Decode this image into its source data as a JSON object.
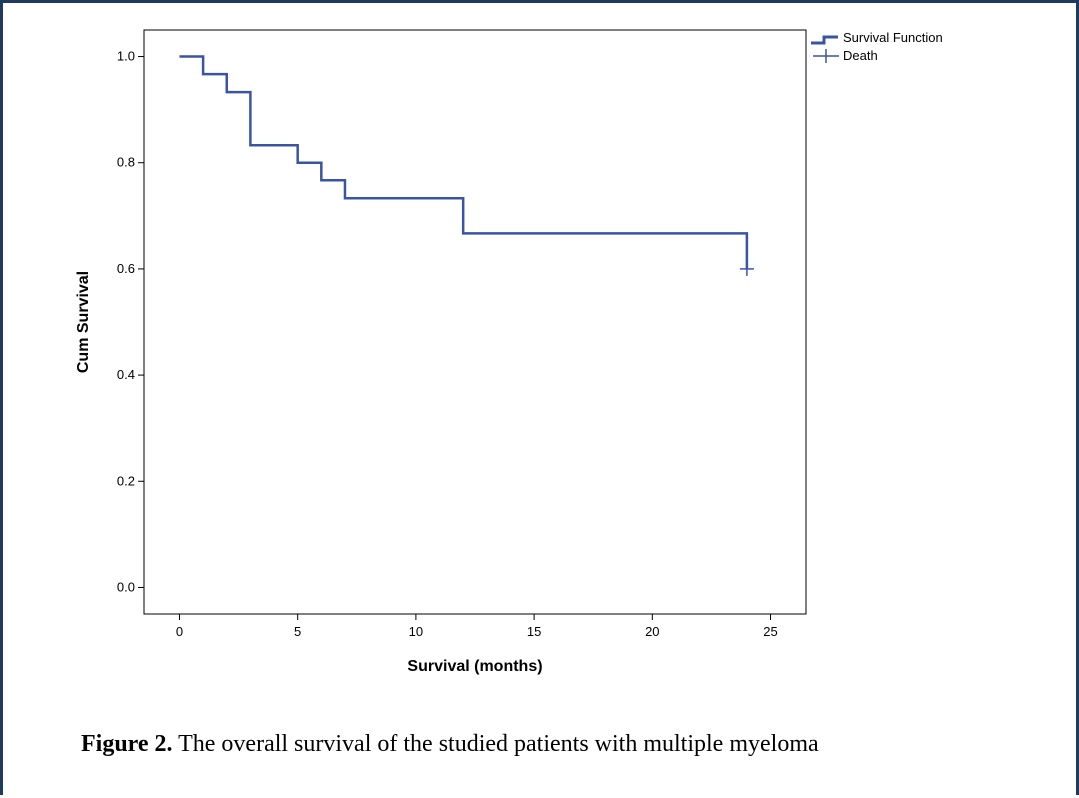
{
  "caption": {
    "label": "Figure 2.",
    "text": " The overall survival of the studied patients with multiple myeloma"
  },
  "colors": {
    "line": "#3a54a4",
    "frame": "#1f3a5f"
  },
  "chart_data": {
    "type": "line",
    "title": "",
    "xlabel": "Survival (months)",
    "ylabel": "Cum Survival",
    "xlim": [
      -1.5,
      26.5
    ],
    "ylim": [
      -0.05,
      1.05
    ],
    "x_ticks": [
      0,
      5,
      10,
      15,
      20,
      25
    ],
    "y_ticks": [
      0.0,
      0.2,
      0.4,
      0.6,
      0.8,
      1.0
    ],
    "x_tick_labels": [
      "0",
      "5",
      "10",
      "15",
      "20",
      "25"
    ],
    "y_tick_labels": [
      "0.0",
      "0.2",
      "0.4",
      "0.6",
      "0.8",
      "1.0"
    ],
    "legend": {
      "position": "top-right outside",
      "entries": [
        {
          "label": "Survival Function",
          "symbol": "step"
        },
        {
          "label": "Death",
          "symbol": "cross"
        }
      ]
    },
    "series": [
      {
        "name": "Survival Function",
        "style": "step",
        "points": [
          {
            "x": 0,
            "y": 1.0
          },
          {
            "x": 1,
            "y": 0.967
          },
          {
            "x": 2,
            "y": 0.933
          },
          {
            "x": 3,
            "y": 0.833
          },
          {
            "x": 5,
            "y": 0.8
          },
          {
            "x": 6,
            "y": 0.767
          },
          {
            "x": 7,
            "y": 0.733
          },
          {
            "x": 12,
            "y": 0.667
          },
          {
            "x": 24,
            "y": 0.6
          }
        ]
      },
      {
        "name": "Death",
        "style": "censor-marks",
        "points": [
          {
            "x": 24,
            "y": 0.6
          }
        ]
      }
    ]
  }
}
